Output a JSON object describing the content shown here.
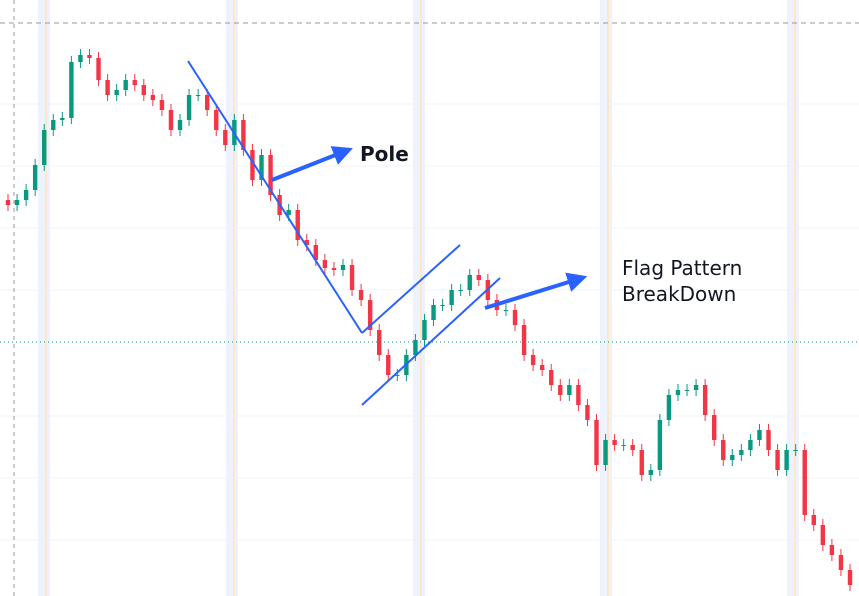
{
  "chart_data": {
    "type": "candlestick",
    "ylim": [
      0,
      600
    ],
    "up_color": "#089981",
    "down_color": "#f23645",
    "annotations": [
      {
        "text": "Pole"
      },
      {
        "lines": [
          "Flag Pattern",
          "BreakDown"
        ]
      }
    ],
    "open": [
      400,
      395,
      400,
      410,
      435,
      470,
      480,
      482,
      538,
      545,
      542,
      520,
      505,
      510,
      520,
      515,
      505,
      500,
      490,
      470,
      480,
      505,
      505,
      490,
      470,
      455,
      480,
      450,
      420,
      445,
      405,
      385,
      390,
      360,
      355,
      340,
      332,
      330,
      335,
      310,
      300,
      270,
      245,
      225,
      225,
      245,
      260,
      280,
      295,
      295,
      310,
      310,
      325,
      320,
      300,
      290,
      290,
      275,
      245,
      235,
      230,
      215,
      205,
      215,
      195,
      180,
      135,
      160,
      155,
      155,
      150,
      125,
      130,
      180,
      205,
      210,
      210,
      215,
      185,
      160,
      140,
      145,
      150,
      160,
      170,
      150,
      130,
      150,
      150,
      85,
      75,
      55,
      45,
      30
    ],
    "high": [
      406,
      406,
      416,
      441,
      476,
      486,
      488,
      544,
      551,
      551,
      548,
      526,
      516,
      526,
      526,
      521,
      511,
      506,
      496,
      486,
      511,
      511,
      511,
      496,
      476,
      486,
      486,
      456,
      451,
      451,
      411,
      396,
      396,
      366,
      361,
      346,
      338,
      341,
      341,
      316,
      306,
      276,
      251,
      231,
      251,
      266,
      286,
      301,
      301,
      316,
      316,
      331,
      331,
      326,
      306,
      296,
      296,
      281,
      251,
      241,
      236,
      221,
      221,
      221,
      201,
      186,
      166,
      166,
      161,
      161,
      156,
      136,
      186,
      211,
      216,
      216,
      221,
      221,
      191,
      166,
      151,
      156,
      166,
      176,
      176,
      156,
      156,
      156,
      156,
      91,
      81,
      61,
      51,
      36
    ],
    "low": [
      389,
      389,
      394,
      404,
      429,
      464,
      474,
      476,
      532,
      536,
      514,
      499,
      499,
      504,
      509,
      499,
      494,
      484,
      464,
      464,
      474,
      499,
      484,
      464,
      449,
      449,
      444,
      414,
      414,
      399,
      379,
      379,
      354,
      349,
      334,
      326,
      324,
      324,
      304,
      294,
      264,
      239,
      219,
      219,
      219,
      239,
      254,
      274,
      289,
      289,
      304,
      304,
      314,
      294,
      284,
      284,
      269,
      239,
      229,
      224,
      209,
      199,
      199,
      189,
      174,
      129,
      129,
      149,
      149,
      144,
      119,
      119,
      124,
      174,
      199,
      204,
      204,
      179,
      154,
      134,
      134,
      139,
      144,
      154,
      144,
      124,
      124,
      144,
      79,
      69,
      49,
      39,
      24,
      9
    ],
    "close": [
      395,
      400,
      410,
      435,
      470,
      480,
      482,
      538,
      545,
      542,
      520,
      505,
      510,
      520,
      515,
      505,
      500,
      490,
      470,
      480,
      505,
      505,
      490,
      470,
      455,
      480,
      450,
      420,
      445,
      405,
      385,
      390,
      360,
      355,
      340,
      332,
      330,
      335,
      310,
      300,
      270,
      245,
      225,
      225,
      245,
      260,
      280,
      295,
      295,
      310,
      310,
      325,
      320,
      300,
      290,
      290,
      275,
      245,
      235,
      230,
      215,
      205,
      215,
      195,
      180,
      135,
      160,
      155,
      155,
      150,
      125,
      130,
      180,
      205,
      210,
      210,
      215,
      185,
      160,
      140,
      145,
      150,
      160,
      170,
      150,
      130,
      150,
      150,
      85,
      75,
      55,
      45,
      30,
      15
    ]
  }
}
